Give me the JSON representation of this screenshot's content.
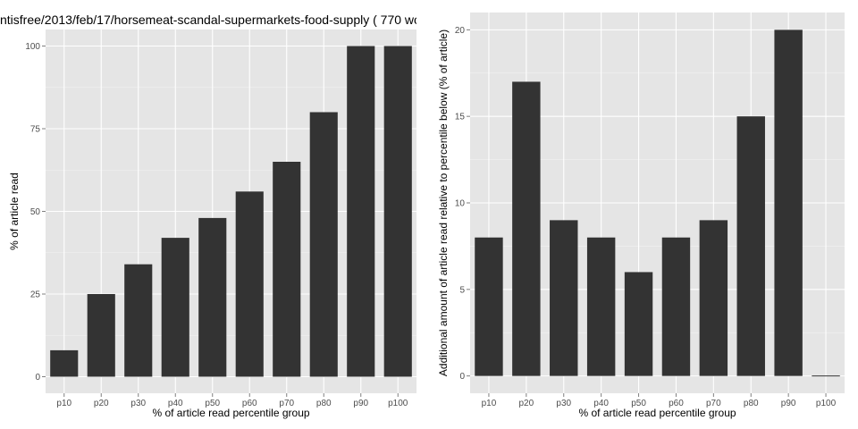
{
  "chart_data": [
    {
      "type": "bar",
      "title": "ntisfree/2013/feb/17/horsemeat-scandal-supermarkets-food-supply ( 770 wo",
      "xlabel": "% of article read percentile group",
      "ylabel": "% of article read",
      "categories": [
        "p10",
        "p20",
        "p30",
        "p40",
        "p50",
        "p60",
        "p70",
        "p80",
        "p90",
        "p100"
      ],
      "values": [
        8,
        25,
        34,
        42,
        48,
        56,
        65,
        80,
        100,
        100
      ],
      "ylim": [
        -5,
        105
      ],
      "yticks": [
        0,
        25,
        50,
        75,
        100
      ],
      "grid": true,
      "colors": {
        "bar": "#333333",
        "panel": "#e5e5e5",
        "grid_major": "#ffffff",
        "grid_minor": "#f2f2f2"
      }
    },
    {
      "type": "bar",
      "title": "",
      "xlabel": "% of article read percentile group",
      "ylabel": "Additional amount of article read relative to percentile below (% of article)",
      "categories": [
        "p10",
        "p20",
        "p30",
        "p40",
        "p50",
        "p60",
        "p70",
        "p80",
        "p90",
        "p100"
      ],
      "values": [
        8,
        17,
        9,
        8,
        6,
        8,
        9,
        15,
        20,
        0
      ],
      "ylim": [
        -1,
        21
      ],
      "yticks": [
        0,
        5,
        10,
        15,
        20
      ],
      "grid": true,
      "colors": {
        "bar": "#333333",
        "panel": "#e5e5e5",
        "grid_major": "#ffffff",
        "grid_minor": "#f2f2f2"
      }
    }
  ]
}
